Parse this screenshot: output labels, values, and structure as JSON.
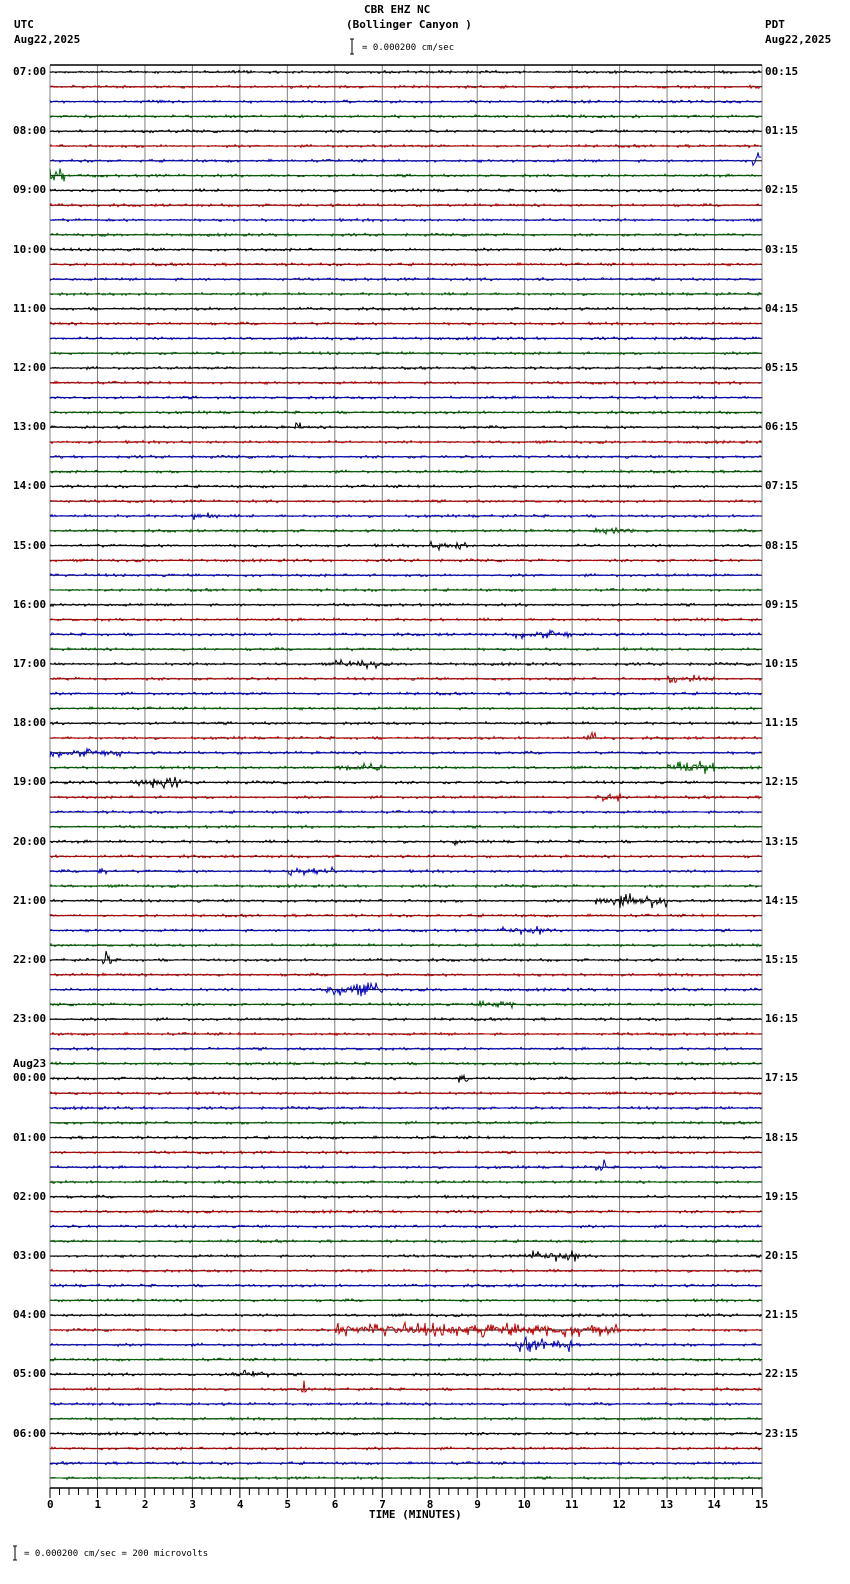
{
  "header": {
    "station": "CBR EHZ NC",
    "location": "(Bollinger Canyon )",
    "scale_text": "= 0.000200 cm/sec",
    "left_tz": "UTC",
    "left_date": "Aug22,2025",
    "right_tz": "PDT",
    "right_date": "Aug22,2025"
  },
  "footer": {
    "scale_text": "= 0.000200 cm/sec =     200 microvolts",
    "prefix": "="
  },
  "chart_data": {
    "type": "line",
    "title": "CBR EHZ NC (Bollinger Canyon )",
    "xlabel": "TIME (MINUTES)",
    "ylabel": "",
    "xlim": [
      0,
      15
    ],
    "x_ticks": [
      "0",
      "1",
      "2",
      "3",
      "4",
      "5",
      "6",
      "7",
      "8",
      "9",
      "10",
      "11",
      "12",
      "13",
      "14",
      "15"
    ],
    "traces_per_hour": 4,
    "trace_colors": [
      "#000000",
      "#c00000",
      "#0000c8",
      "#006400"
    ],
    "utc_labels": [
      "07:00",
      "08:00",
      "09:00",
      "10:00",
      "11:00",
      "12:00",
      "13:00",
      "14:00",
      "15:00",
      "16:00",
      "17:00",
      "18:00",
      "19:00",
      "20:00",
      "21:00",
      "22:00",
      "23:00",
      "00:00",
      "01:00",
      "02:00",
      "03:00",
      "04:00",
      "05:00",
      "06:00"
    ],
    "utc_date_change": {
      "index": 17,
      "label": "Aug23"
    },
    "pdt_labels": [
      "00:15",
      "01:15",
      "02:15",
      "03:15",
      "04:15",
      "05:15",
      "06:15",
      "07:15",
      "08:15",
      "09:15",
      "10:15",
      "11:15",
      "12:15",
      "13:15",
      "14:15",
      "15:15",
      "16:15",
      "17:15",
      "18:15",
      "19:15",
      "20:15",
      "21:15",
      "22:15",
      "23:15"
    ],
    "events": [
      {
        "trace": 6,
        "start": 14.8,
        "end": 15.0,
        "amp": 9
      },
      {
        "trace": 7,
        "start": 0.0,
        "end": 0.3,
        "amp": 5
      },
      {
        "trace": 14,
        "start": 10.3,
        "end": 10.4,
        "amp": 5
      },
      {
        "trace": 24,
        "start": 5.1,
        "end": 5.3,
        "amp": 4
      },
      {
        "trace": 30,
        "start": 3.0,
        "end": 3.6,
        "amp": 3
      },
      {
        "trace": 31,
        "start": 11.4,
        "end": 12.3,
        "amp": 3
      },
      {
        "trace": 32,
        "start": 8.0,
        "end": 8.8,
        "amp": 3
      },
      {
        "trace": 38,
        "start": 9.8,
        "end": 11.0,
        "amp": 3
      },
      {
        "trace": 40,
        "start": 6.0,
        "end": 7.0,
        "amp": 3
      },
      {
        "trace": 41,
        "start": 13.0,
        "end": 14.0,
        "amp": 3
      },
      {
        "trace": 45,
        "start": 11.3,
        "end": 11.5,
        "amp": 4
      },
      {
        "trace": 46,
        "start": 0.0,
        "end": 1.5,
        "amp": 3
      },
      {
        "trace": 47,
        "start": 6.0,
        "end": 7.0,
        "amp": 3
      },
      {
        "trace": 47,
        "start": 13.0,
        "end": 14.0,
        "amp": 5
      },
      {
        "trace": 48,
        "start": 1.7,
        "end": 2.8,
        "amp": 4
      },
      {
        "trace": 49,
        "start": 11.5,
        "end": 12.2,
        "amp": 3
      },
      {
        "trace": 52,
        "start": 8.5,
        "end": 8.6,
        "amp": 5
      },
      {
        "trace": 54,
        "start": 5.0,
        "end": 6.0,
        "amp": 3
      },
      {
        "trace": 54,
        "start": 1.0,
        "end": 1.2,
        "amp": 5
      },
      {
        "trace": 56,
        "start": 11.5,
        "end": 13.0,
        "amp": 5
      },
      {
        "trace": 58,
        "start": 9.5,
        "end": 10.5,
        "amp": 3
      },
      {
        "trace": 60,
        "start": 1.1,
        "end": 1.3,
        "amp": 6
      },
      {
        "trace": 62,
        "start": 5.8,
        "end": 7.0,
        "amp": 5
      },
      {
        "trace": 63,
        "start": 9.0,
        "end": 9.8,
        "amp": 3
      },
      {
        "trace": 68,
        "start": 8.6,
        "end": 8.8,
        "amp": 6
      },
      {
        "trace": 74,
        "start": 11.5,
        "end": 11.7,
        "amp": 5
      },
      {
        "trace": 80,
        "start": 10.0,
        "end": 11.2,
        "amp": 4
      },
      {
        "trace": 85,
        "start": 6.0,
        "end": 12.0,
        "amp": 5
      },
      {
        "trace": 86,
        "start": 9.8,
        "end": 11.0,
        "amp": 5
      },
      {
        "trace": 88,
        "start": 3.8,
        "end": 4.6,
        "amp": 3
      },
      {
        "trace": 89,
        "start": 5.3,
        "end": 5.4,
        "amp": 6
      }
    ]
  }
}
